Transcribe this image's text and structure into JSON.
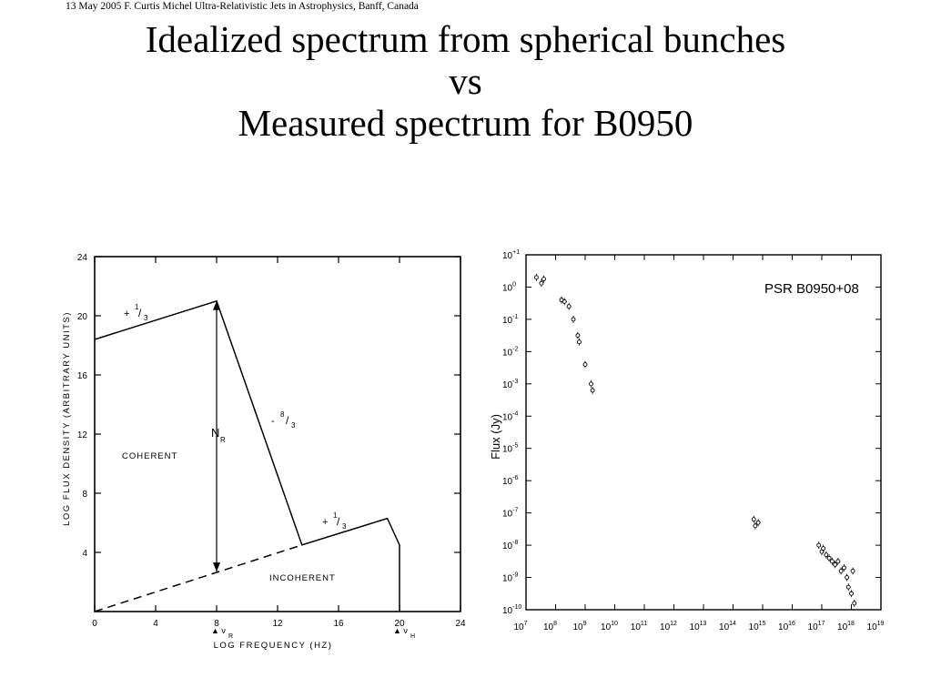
{
  "header": "13 May 2005 F. Curtis Michel Ultra-Relativistic Jets in Astrophysics, Banff, Canada",
  "title": {
    "line1": "Idealized spectrum from spherical bunches",
    "line2": "vs",
    "line3": "Measured spectrum for B0950"
  },
  "chart_data": [
    {
      "type": "line",
      "xlabel": "LOG FREQUENCY (HZ)",
      "ylabel": "LOG FLUX DENSITY (ARBITRARY UNITS)",
      "xlim": [
        0,
        24
      ],
      "ylim": [
        0,
        24
      ],
      "x_ticks": [
        "0",
        "4",
        "8",
        "12",
        "16",
        "20",
        "24"
      ],
      "y_ticks": [
        "4",
        "8",
        "12",
        "16",
        "20",
        "24"
      ],
      "series": [
        {
          "style": "solid",
          "x": [
            0,
            8,
            13.6,
            19.2,
            20,
            20
          ],
          "y": [
            18.4,
            21,
            4.5,
            6.3,
            4.5,
            0
          ]
        },
        {
          "style": "dashed",
          "x": [
            0,
            13.6
          ],
          "y": [
            0,
            4.5
          ]
        }
      ],
      "annotations": {
        "slope_low": "+ 1/3",
        "slope_steep": "- 8/3",
        "slope_high": "+ 1/3",
        "nr": "N_R",
        "nr_main": "N",
        "nr_sub": "R",
        "coherent": "COHERENT",
        "incoherent": "INCOHERENT",
        "nu_r_main": "▲ ν",
        "nu_r_sub": "R",
        "nu_h_main": "▲ ν",
        "nu_h_sub": "H",
        "slope_frac_top": "1",
        "slope_frac_bot_13": "3",
        "slope_frac_top_8": "8",
        "plus": "+",
        "minus": "-"
      },
      "vertical_arrow": {
        "x": 8,
        "y_from": 2.7,
        "y_to": 21
      }
    },
    {
      "type": "scatter",
      "title": "PSR B0950+08",
      "ylabel": "Flux (Jy)",
      "xscale": "log",
      "yscale": "log",
      "xlim_exp": [
        7,
        19
      ],
      "ylim_exp": [
        -10,
        1
      ],
      "x_tick_base": "10",
      "x_tick_exps": [
        "7",
        "8",
        "9",
        "10",
        "11",
        "12",
        "13",
        "14",
        "15",
        "16",
        "17",
        "18",
        "19"
      ],
      "y_tick_base": "10",
      "y_tick_exps": [
        "+1",
        "0",
        "-1",
        "-2",
        "-3",
        "-4",
        "-5",
        "-6",
        "-7",
        "-8",
        "-9",
        "-10"
      ],
      "points_log": [
        [
          7.35,
          0.3
        ],
        [
          7.52,
          0.12
        ],
        [
          7.6,
          0.25
        ],
        [
          8.2,
          -0.4
        ],
        [
          8.3,
          -0.45
        ],
        [
          8.45,
          -0.6
        ],
        [
          8.6,
          -1.0
        ],
        [
          8.75,
          -1.5
        ],
        [
          8.8,
          -1.7
        ],
        [
          9.0,
          -2.4
        ],
        [
          9.2,
          -3.0
        ],
        [
          9.25,
          -3.2
        ],
        [
          14.7,
          -7.2
        ],
        [
          14.75,
          -7.4
        ],
        [
          14.85,
          -7.3
        ],
        [
          16.9,
          -8.0
        ],
        [
          17.0,
          -8.2
        ],
        [
          17.05,
          -8.1
        ],
        [
          17.15,
          -8.3
        ],
        [
          17.25,
          -8.4
        ],
        [
          17.35,
          -8.5
        ],
        [
          17.45,
          -8.6
        ],
        [
          17.55,
          -8.5
        ],
        [
          17.65,
          -8.8
        ],
        [
          17.75,
          -8.7
        ],
        [
          17.85,
          -9.0
        ],
        [
          17.9,
          -9.3
        ],
        [
          18.0,
          -9.5
        ],
        [
          18.05,
          -8.8
        ],
        [
          18.1,
          -9.8
        ]
      ]
    }
  ]
}
